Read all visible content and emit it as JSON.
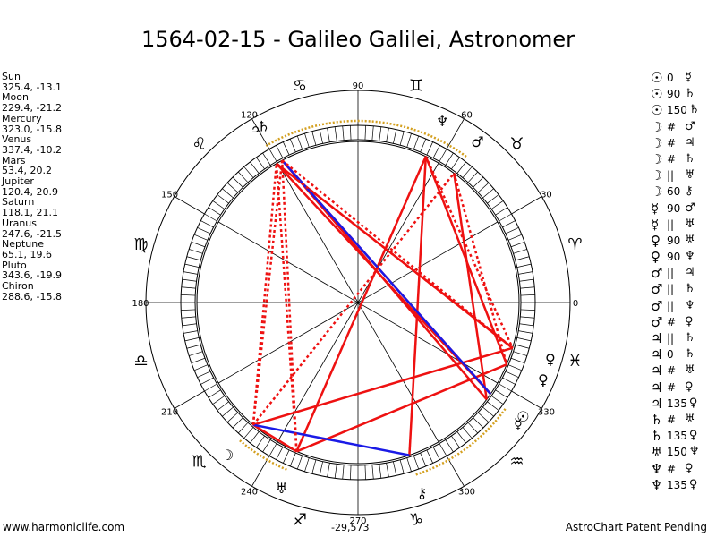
{
  "title": "1564-02-15 - Galileo Galilei, Astronomer",
  "planets": [
    {
      "name": "Sun",
      "coords": "325.4, -13.1"
    },
    {
      "name": "Moon",
      "coords": "229.4, -21.2"
    },
    {
      "name": "Mercury",
      "coords": "323.0, -15.8"
    },
    {
      "name": "Venus",
      "coords": "337.4, -10.2"
    },
    {
      "name": "Mars",
      "coords": "53.4, 20.2"
    },
    {
      "name": "Jupiter",
      "coords": "120.4, 20.9"
    },
    {
      "name": "Saturn",
      "coords": "118.1, 21.1"
    },
    {
      "name": "Uranus",
      "coords": "247.6, -21.5"
    },
    {
      "name": "Neptune",
      "coords": "65.1, 19.6"
    },
    {
      "name": "Pluto",
      "coords": "343.6, -19.9"
    },
    {
      "name": "Chiron",
      "coords": "288.6, -15.8"
    }
  ],
  "aspects": [
    {
      "p1": "☉",
      "asp": "0",
      "p2": "☿"
    },
    {
      "p1": "☉",
      "asp": "90",
      "p2": "♄"
    },
    {
      "p1": "☉",
      "asp": "150",
      "p2": "♄"
    },
    {
      "p1": "☽",
      "asp": "#",
      "p2": "♂"
    },
    {
      "p1": "☽",
      "asp": "#",
      "p2": "♃"
    },
    {
      "p1": "☽",
      "asp": "#",
      "p2": "♄"
    },
    {
      "p1": "☽",
      "asp": "||",
      "p2": "♅"
    },
    {
      "p1": "☽",
      "asp": "60",
      "p2": "⚷"
    },
    {
      "p1": "☿",
      "asp": "90",
      "p2": "♂"
    },
    {
      "p1": "☿",
      "asp": "||",
      "p2": "♅"
    },
    {
      "p1": "♀",
      "asp": "90",
      "p2": "♅"
    },
    {
      "p1": "♀",
      "asp": "90",
      "p2": "♆"
    },
    {
      "p1": "♂",
      "asp": "||",
      "p2": "♃"
    },
    {
      "p1": "♂",
      "asp": "||",
      "p2": "♄"
    },
    {
      "p1": "♂",
      "asp": "||",
      "p2": "♆"
    },
    {
      "p1": "♂",
      "asp": "#",
      "p2": "♀"
    },
    {
      "p1": "♃",
      "asp": "||",
      "p2": "♄"
    },
    {
      "p1": "♃",
      "asp": "0",
      "p2": "♄"
    },
    {
      "p1": "♃",
      "asp": "#",
      "p2": "♅"
    },
    {
      "p1": "♃",
      "asp": "#",
      "p2": "♀"
    },
    {
      "p1": "♃",
      "asp": "135",
      "p2": "♀"
    },
    {
      "p1": "♄",
      "asp": "#",
      "p2": "♅"
    },
    {
      "p1": "♄",
      "asp": "135",
      "p2": "♀"
    },
    {
      "p1": "♅",
      "asp": "150",
      "p2": "♆"
    },
    {
      "p1": "♆",
      "asp": "#",
      "p2": "♀"
    },
    {
      "p1": "♆",
      "asp": "135",
      "p2": "♀"
    }
  ],
  "footer": {
    "left": "www.harmoniclife.com",
    "center": "-29,573",
    "right": "AstroChart Patent Pending"
  },
  "chart_data": {
    "type": "astrological-wheel",
    "title": "1564-02-15 - Galileo Galilei, Astronomer",
    "degree_labels": [
      "0",
      "30",
      "60",
      "90",
      "120",
      "150",
      "180",
      "210",
      "240",
      "270",
      "300",
      "330"
    ],
    "zodiac_signs": [
      {
        "name": "Aries",
        "glyph": "♈",
        "start": 0
      },
      {
        "name": "Taurus",
        "glyph": "♉",
        "start": 30
      },
      {
        "name": "Gemini",
        "glyph": "♊",
        "start": 60
      },
      {
        "name": "Cancer",
        "glyph": "♋",
        "start": 90
      },
      {
        "name": "Leo",
        "glyph": "♌",
        "start": 120
      },
      {
        "name": "Virgo",
        "glyph": "♍",
        "start": 150
      },
      {
        "name": "Libra",
        "glyph": "♎",
        "start": 180
      },
      {
        "name": "Scorpio",
        "glyph": "♏",
        "start": 210
      },
      {
        "name": "Sagittarius",
        "glyph": "♐",
        "start": 240
      },
      {
        "name": "Capricorn",
        "glyph": "♑",
        "start": 270
      },
      {
        "name": "Aquarius",
        "glyph": "♒",
        "start": 300
      },
      {
        "name": "Pisces",
        "glyph": "♓",
        "start": 330
      }
    ],
    "planet_positions": [
      {
        "name": "Sun",
        "glyph": "☉",
        "longitude": 325.4
      },
      {
        "name": "Moon",
        "glyph": "☽",
        "longitude": 229.4
      },
      {
        "name": "Mercury",
        "glyph": "☿",
        "longitude": 323.0
      },
      {
        "name": "Venus",
        "glyph": "♀",
        "longitude": 337.4
      },
      {
        "name": "Mars",
        "glyph": "♂",
        "longitude": 53.4
      },
      {
        "name": "Jupiter",
        "glyph": "♃",
        "longitude": 120.4
      },
      {
        "name": "Saturn",
        "glyph": "♄",
        "longitude": 118.1
      },
      {
        "name": "Uranus",
        "glyph": "♅",
        "longitude": 247.6
      },
      {
        "name": "Neptune",
        "glyph": "♆",
        "longitude": 65.1
      },
      {
        "name": "Pluto",
        "glyph": "♀",
        "longitude": 343.6
      },
      {
        "name": "Chiron",
        "glyph": "⚷",
        "longitude": 288.6
      }
    ],
    "aspect_lines": [
      {
        "a": "Sun",
        "b": "Saturn",
        "style": "solid",
        "color": "#ee1111"
      },
      {
        "a": "Mercury",
        "b": "Saturn",
        "style": "solid",
        "color": "#ee1111"
      },
      {
        "a": "Sun",
        "b": "Jupiter",
        "style": "solid",
        "color": "#ee1111"
      },
      {
        "a": "Mercury",
        "b": "Mars",
        "style": "solid",
        "color": "#ee1111"
      },
      {
        "a": "Venus",
        "b": "Neptune",
        "style": "solid",
        "color": "#ee1111"
      },
      {
        "a": "Venus",
        "b": "Uranus",
        "style": "solid",
        "color": "#ee1111"
      },
      {
        "a": "Uranus",
        "b": "Neptune",
        "style": "solid",
        "color": "#ee1111"
      },
      {
        "a": "Moon",
        "b": "Pluto",
        "style": "solid",
        "color": "#ee1111"
      },
      {
        "a": "Chiron",
        "b": "Neptune",
        "style": "solid",
        "color": "#ee1111"
      },
      {
        "a": "Jupiter",
        "b": "Pluto",
        "style": "solid",
        "color": "#ee1111"
      },
      {
        "a": "Moon",
        "b": "Uranus",
        "style": "solid",
        "color": "#ee1111"
      },
      {
        "a": "Saturn",
        "b": "Sun",
        "style": "solid",
        "color": "#1a1ae6"
      },
      {
        "a": "Moon",
        "b": "Chiron",
        "style": "solid",
        "color": "#1a1ae6"
      },
      {
        "a": "Moon",
        "b": "Jupiter",
        "style": "dotted",
        "color": "#ee1111"
      },
      {
        "a": "Moon",
        "b": "Saturn",
        "style": "dotted",
        "color": "#ee1111"
      },
      {
        "a": "Moon",
        "b": "Mars",
        "style": "dotted",
        "color": "#ee1111"
      },
      {
        "a": "Uranus",
        "b": "Jupiter",
        "style": "dotted",
        "color": "#ee1111"
      },
      {
        "a": "Uranus",
        "b": "Saturn",
        "style": "dotted",
        "color": "#ee1111"
      },
      {
        "a": "Jupiter",
        "b": "Pluto",
        "style": "dotted",
        "color": "#ee1111"
      },
      {
        "a": "Mars",
        "b": "Venus",
        "style": "dotted",
        "color": "#ee1111"
      },
      {
        "a": "Neptune",
        "b": "Pluto",
        "style": "dotted",
        "color": "#ee1111"
      },
      {
        "a": "Saturn",
        "b": "Pluto",
        "style": "dotted",
        "color": "#ee1111"
      }
    ],
    "arc_highlights": [
      {
        "from": 53.4,
        "to": 120.4,
        "color": "#d4a020"
      },
      {
        "from": 229.4,
        "to": 247.6
      },
      {
        "from": 288.6,
        "to": 325.4
      }
    ],
    "colors": {
      "aspect_hard": "#ee1111",
      "aspect_soft": "#1a1ae6",
      "arc": "#d4a020"
    }
  }
}
